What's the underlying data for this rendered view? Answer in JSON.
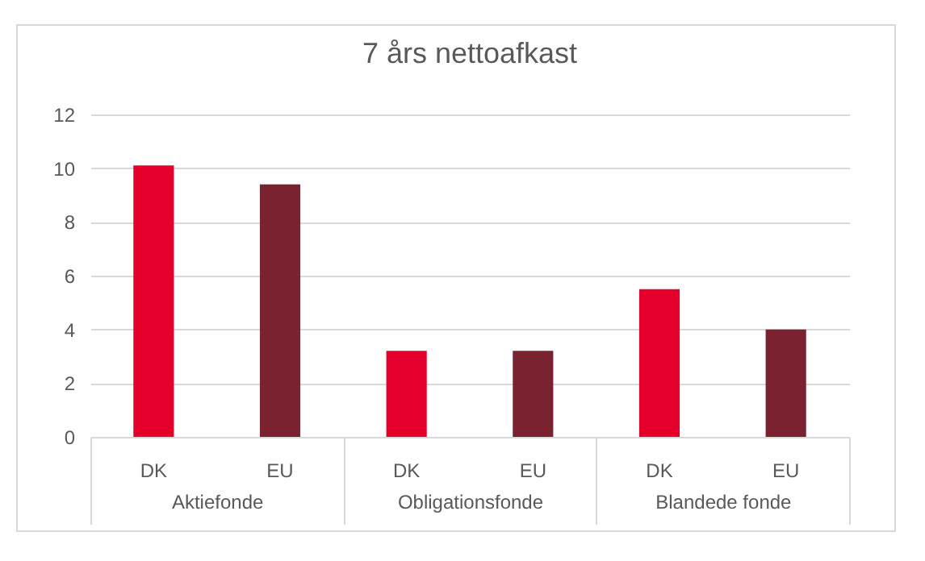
{
  "chart_data": {
    "type": "bar",
    "title": "7 års nettoafkast",
    "categories": [
      "Aktiefonde",
      "Obligationsfonde",
      "Blandede fonde"
    ],
    "series": [
      {
        "name": "DK",
        "color": "#e4002b",
        "values": [
          10.1,
          3.2,
          5.5
        ]
      },
      {
        "name": "EU",
        "color": "#7b2230",
        "values": [
          9.4,
          3.2,
          4.0
        ]
      }
    ],
    "ylim": [
      0,
      12
    ],
    "yticks": [
      0,
      2,
      4,
      6,
      8,
      10,
      12
    ],
    "grid": "y",
    "legend": false
  }
}
